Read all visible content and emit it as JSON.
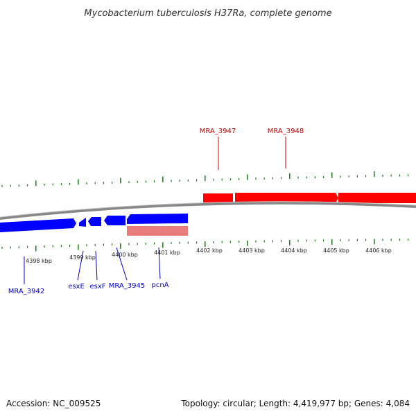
{
  "title": "Mycobacterium tuberculosis H37Ra, complete genome",
  "footer": {
    "accession": "Accession: NC_009525",
    "summary": "Topology: circular; Length: 4,419,977 bp; Genes: 4,084"
  },
  "colors": {
    "forward_gene": "#ff0000",
    "reverse_gene": "#0000ff",
    "rna_feature": "#e87c7c",
    "backbone": "#888888",
    "ticks": "#1a7a1a",
    "forward_label": "#cc0000",
    "reverse_label": "#0000cc"
  },
  "axis": {
    "tick_labels": [
      "4398 kbp",
      "4399 kbp",
      "4400 kbp",
      "4401 kbp",
      "4402 kbp",
      "4403 kbp",
      "4404 kbp",
      "4405 kbp",
      "4406 kbp"
    ]
  },
  "forward_genes": [
    {
      "label": "MRA_3947"
    },
    {
      "label": "MRA_3948"
    },
    {
      "label": ""
    }
  ],
  "reverse_genes": [
    {
      "label": "MRA_3942"
    },
    {
      "label": "esxE"
    },
    {
      "label": "esxF"
    },
    {
      "label": "MRA_3945"
    },
    {
      "label": "pcnA"
    }
  ]
}
